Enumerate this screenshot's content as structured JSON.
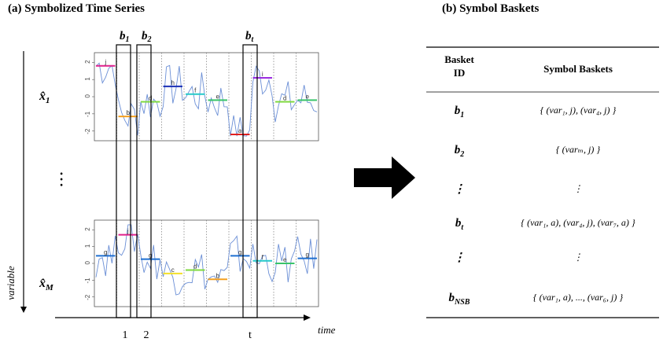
{
  "panel_a": {
    "title": "(a) Symbolized Time Series",
    "y_axis_label": "variable",
    "x_axis_label": "time",
    "dots": "• • •",
    "y_ticks": [
      "2",
      "1",
      "0",
      "-1",
      "-2"
    ],
    "x_labels": [
      "1",
      "2",
      "t"
    ],
    "series": [
      {
        "label": "x̂",
        "sub": "1",
        "segments": [
          {
            "sym": "j",
            "value": 1.8,
            "color": "#e0208c"
          },
          {
            "sym": "b",
            "value": -1.15,
            "color": "#f4a020"
          },
          {
            "sym": "d",
            "value": -0.3,
            "color": "#7fd93f"
          },
          {
            "sym": "h",
            "value": 0.6,
            "color": "#1a2fb5"
          },
          {
            "sym": "f",
            "value": 0.15,
            "color": "#25c9c9"
          },
          {
            "sym": "e",
            "value": -0.2,
            "color": "#3ac46a"
          },
          {
            "sym": "a",
            "value": -2.2,
            "color": "#e02020"
          },
          {
            "sym": "i",
            "value": 1.1,
            "color": "#9b2be0"
          },
          {
            "sym": "d",
            "value": -0.3,
            "color": "#7fd93f"
          },
          {
            "sym": "e",
            "value": -0.2,
            "color": "#3ac46a"
          }
        ]
      },
      {
        "label": "x̂",
        "sub": "M",
        "segments": [
          {
            "sym": "g",
            "value": 0.45,
            "color": "#1f6fd1"
          },
          {
            "sym": "j",
            "value": 1.7,
            "color": "#e0208c"
          },
          {
            "sym": "g",
            "value": 0.25,
            "color": "#1f6fd1"
          },
          {
            "sym": "c",
            "value": -0.6,
            "color": "#f2e02a"
          },
          {
            "sym": "d",
            "value": -0.4,
            "color": "#7fd93f"
          },
          {
            "sym": "b",
            "value": -0.95,
            "color": "#f4a020"
          },
          {
            "sym": "g",
            "value": 0.45,
            "color": "#1f6fd1"
          },
          {
            "sym": "f",
            "value": 0.15,
            "color": "#25c9c9"
          },
          {
            "sym": "e",
            "value": 0.0,
            "color": "#3ac46a"
          },
          {
            "sym": "g",
            "value": 0.3,
            "color": "#1f6fd1"
          }
        ]
      }
    ],
    "baskets": [
      {
        "label": "b",
        "sub": "1"
      },
      {
        "label": "b",
        "sub": "2"
      },
      {
        "label": "b",
        "sub": "t"
      }
    ],
    "colors": {
      "line": "#6b8fd6",
      "frame": "#555555",
      "bg": "#ffffff"
    }
  },
  "arrow": {
    "color": "#000000"
  },
  "panel_b": {
    "title": "(b) Symbol Baskets",
    "header_id": "Basket\nID",
    "header_baskets": "Symbol Baskets",
    "rows": [
      {
        "id": "b",
        "id_sub": "1",
        "content": "{ (var₁, j), (var₄, j) }"
      },
      {
        "id": "b",
        "id_sub": "2",
        "content": "{ (varₘ, j) }"
      },
      {
        "id": "⋮",
        "id_sub": "",
        "content": "⋮"
      },
      {
        "id": "b",
        "id_sub": "t",
        "content": "{ (var₁, a), (var₄, j), (var₇, a) }"
      },
      {
        "id": "⋮",
        "id_sub": "",
        "content": "⋮"
      },
      {
        "id": "b",
        "id_sub": "NSB",
        "content": "{ (var₁, a), ..., (var₆, j) }"
      }
    ]
  }
}
